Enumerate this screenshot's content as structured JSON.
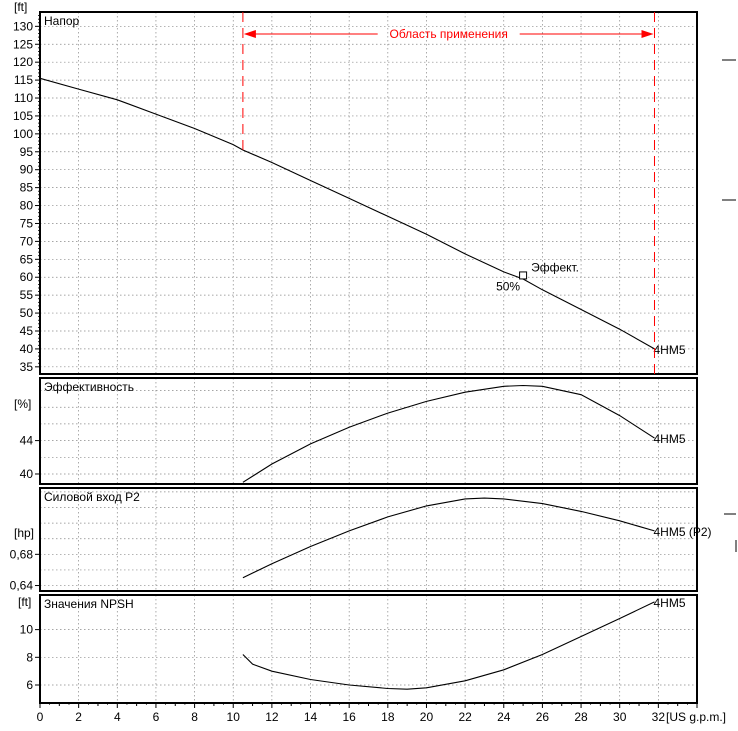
{
  "chart_data": [
    {
      "type": "line",
      "title": "Напор",
      "yunit": "[ft]",
      "xlim": [
        0,
        34
      ],
      "ylim": [
        33,
        134
      ],
      "yticks": [
        35,
        40,
        45,
        50,
        55,
        60,
        65,
        70,
        75,
        80,
        85,
        90,
        95,
        100,
        105,
        110,
        115,
        120,
        125,
        130
      ],
      "series": [
        {
          "name": "4HM5",
          "x": [
            0,
            2,
            4,
            6,
            8,
            10,
            10.5,
            12,
            14,
            16,
            18,
            20,
            22,
            24,
            25,
            26,
            28,
            30,
            31.8
          ],
          "y": [
            115.5,
            112.5,
            109.5,
            105.5,
            101.5,
            97,
            95.5,
            92,
            87,
            82,
            77,
            72,
            66.5,
            61.5,
            59.5,
            56.5,
            51,
            45.5,
            40
          ]
        }
      ],
      "annotations": {
        "range_label": "Область применения",
        "range": [
          10.5,
          31.8
        ],
        "point_label": "Эффект.",
        "point_value": "50%",
        "point": [
          25,
          60.5
        ]
      }
    },
    {
      "type": "line",
      "title": "Эффективность",
      "yunit": "[%]",
      "xlim": [
        0,
        34
      ],
      "ylim": [
        38.8,
        51.5
      ],
      "yticks": [
        40,
        44
      ],
      "series": [
        {
          "name": "4HM5",
          "x": [
            10.5,
            12,
            14,
            16,
            18,
            20,
            22,
            24,
            25,
            26,
            28,
            30,
            31.8
          ],
          "y": [
            39,
            41.2,
            43.6,
            45.6,
            47.3,
            48.7,
            49.8,
            50.5,
            50.6,
            50.5,
            49.5,
            47,
            44.3
          ]
        }
      ]
    },
    {
      "type": "line",
      "title": "Силовой вход P2",
      "yunit": "[hp]",
      "xlim": [
        0,
        34
      ],
      "ylim": [
        0.633,
        0.765
      ],
      "yticks": [
        0.64,
        0.68
      ],
      "yticklabels": [
        "0,64",
        "0,68"
      ],
      "series": [
        {
          "name": "4HM5 (P2)",
          "x": [
            10.5,
            12,
            14,
            16,
            18,
            20,
            22,
            23,
            24,
            26,
            28,
            30,
            31.8
          ],
          "y": [
            0.65,
            0.668,
            0.69,
            0.71,
            0.728,
            0.742,
            0.751,
            0.752,
            0.751,
            0.745,
            0.735,
            0.723,
            0.71
          ]
        }
      ]
    },
    {
      "type": "line",
      "title": "Значения NPSH",
      "yunit": "[ft]",
      "xlim": [
        0,
        34
      ],
      "ylim": [
        4.7,
        12.5
      ],
      "yticks": [
        6,
        8,
        10
      ],
      "xticks": [
        0,
        2,
        4,
        6,
        8,
        10,
        12,
        14,
        16,
        18,
        20,
        22,
        24,
        26,
        28,
        30,
        32
      ],
      "xunit": "[US g.p.m.]",
      "series": [
        {
          "name": "4HM5",
          "x": [
            10.5,
            11,
            12,
            14,
            16,
            18,
            19,
            20,
            22,
            24,
            26,
            28,
            30,
            31.8
          ],
          "y": [
            8.2,
            7.5,
            7,
            6.4,
            6,
            5.75,
            5.7,
            5.8,
            6.3,
            7.1,
            8.2,
            9.5,
            10.8,
            12
          ]
        }
      ]
    }
  ]
}
